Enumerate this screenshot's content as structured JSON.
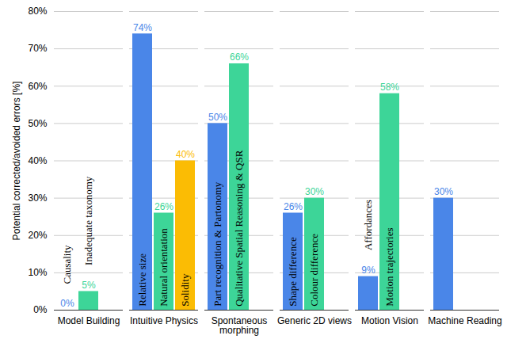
{
  "chart_data": {
    "type": "bar",
    "categories": [
      "Model Building",
      "Intuitive Physics",
      "Spontaneous morphing",
      "Generic 2D views",
      "Motion Vision",
      "Machine Reading"
    ],
    "y_label": "Potential corrected/avoided errors [%]",
    "ylim": [
      0,
      80
    ],
    "yticks": [
      {
        "value": 0,
        "label": "0%"
      },
      {
        "value": 10,
        "label": "10%"
      },
      {
        "value": 20,
        "label": "20%"
      },
      {
        "value": 30,
        "label": "30%"
      },
      {
        "value": 40,
        "label": "40%"
      },
      {
        "value": 50,
        "label": "50%"
      },
      {
        "value": 60,
        "label": "60%"
      },
      {
        "value": 70,
        "label": "70%"
      },
      {
        "value": 80,
        "label": "80%"
      }
    ],
    "grid": true,
    "data_labels": true,
    "series": [
      {
        "color": "#4a86e8",
        "values": [
          0,
          74,
          50,
          26,
          9,
          30
        ],
        "value_labels": [
          "0%",
          "74%",
          "50%",
          "26%",
          "9%",
          "30%"
        ],
        "bar_labels": [
          "Causality",
          "Relative size",
          "Part recognition & Partonomy",
          "Shape difference",
          "Affordances",
          null
        ]
      },
      {
        "color": "#3dd598",
        "values": [
          5,
          26,
          66,
          30,
          58,
          null
        ],
        "value_labels": [
          "5%",
          "26%",
          "66%",
          "30%",
          "58%",
          null
        ],
        "bar_labels": [
          "Inadequate taxonomy",
          "Natural orientation",
          "Qualitative Spatial Reasoning & QSR",
          "Colour difference",
          "Motion trajectories",
          null
        ]
      },
      {
        "color": "#fbbc04",
        "values": [
          null,
          40,
          null,
          null,
          null,
          null
        ],
        "value_labels": [
          null,
          "40%",
          null,
          null,
          null,
          null
        ],
        "bar_labels": [
          null,
          "Solidity",
          null,
          null,
          null,
          null
        ]
      }
    ]
  }
}
